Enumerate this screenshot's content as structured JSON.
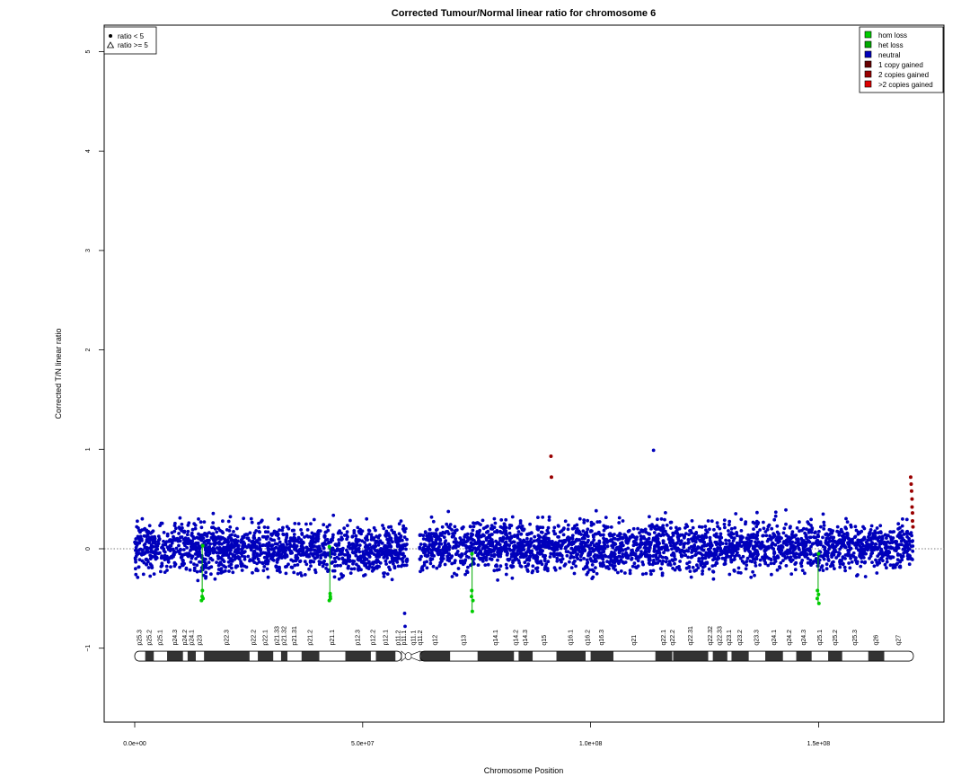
{
  "chart_data": {
    "type": "scatter",
    "title": "Corrected Tumour/Normal linear ratio for chromosome  6",
    "xlabel": "Chromosome Position",
    "ylabel": "Corrected T/N linear ratio",
    "xlim": [
      0,
      170800000
    ],
    "ylim": [
      -1.8,
      5.3
    ],
    "x_ticks": [
      0,
      50000000,
      100000000,
      150000000
    ],
    "x_tick_labels": [
      "0.0e+00",
      "5.0e+07",
      "1.0e+08",
      "1.5e+08"
    ],
    "y_ticks": [
      -1,
      0,
      1,
      2,
      3,
      4,
      5
    ],
    "y_tick_labels": [
      "−1",
      "0",
      "1",
      "2",
      "3",
      "4",
      "5"
    ],
    "reference_line_y": 0,
    "series_colors": {
      "hom_loss": "#00cc00",
      "het_loss": "#00aa00",
      "neutral": "#0000bb",
      "gain1": "#660000",
      "gain2": "#990000",
      "gain_more": "#dd0000"
    },
    "neutral_segments": [
      {
        "start": 0,
        "end": 59800000,
        "mean": 0.0,
        "spread": 0.22
      },
      {
        "start": 62500000,
        "end": 170700000,
        "mean": 0.02,
        "spread": 0.22
      }
    ],
    "loss_spikes": [
      {
        "x": 14800000,
        "values": [
          0.03,
          -0.42,
          -0.48,
          -0.5,
          -0.52
        ]
      },
      {
        "x": 42800000,
        "values": [
          0.02,
          -0.45,
          -0.48,
          -0.5,
          -0.52
        ]
      },
      {
        "x": 74000000,
        "values": [
          -0.05,
          -0.42,
          -0.48,
          -0.52,
          -0.63
        ]
      },
      {
        "x": 149900000,
        "values": [
          -0.05,
          -0.42,
          -0.46,
          -0.5,
          -0.55
        ]
      }
    ],
    "gain_points": [
      {
        "x": 91300000,
        "y": 0.93
      },
      {
        "x": 91400000,
        "y": 0.72
      },
      {
        "x": 170200000,
        "y": 0.72
      },
      {
        "x": 170300000,
        "y": 0.65
      },
      {
        "x": 170400000,
        "y": 0.58
      },
      {
        "x": 170500000,
        "y": 0.5
      },
      {
        "x": 170500000,
        "y": 0.42
      },
      {
        "x": 170600000,
        "y": 0.36
      },
      {
        "x": 170600000,
        "y": 0.28
      },
      {
        "x": 170700000,
        "y": 0.22
      }
    ],
    "outlier_points": [
      {
        "x": 113800000,
        "y": 0.99
      },
      {
        "x": 59300000,
        "y": -0.78
      },
      {
        "x": 59200000,
        "y": -0.65
      }
    ],
    "ideogram": {
      "y": -1.08,
      "centromere": 60000000,
      "bands": [
        {
          "name": "p25.3",
          "start": 0,
          "end": 2300000,
          "stain": "gneg"
        },
        {
          "name": "p25.2",
          "start": 2300000,
          "end": 4200000,
          "stain": "gpos"
        },
        {
          "name": "p25.1",
          "start": 4200000,
          "end": 7100000,
          "stain": "gneg"
        },
        {
          "name": "p24.3",
          "start": 7100000,
          "end": 10600000,
          "stain": "gpos"
        },
        {
          "name": "p24.2",
          "start": 10600000,
          "end": 11600000,
          "stain": "gneg"
        },
        {
          "name": "p24.1",
          "start": 11600000,
          "end": 13400000,
          "stain": "gpos"
        },
        {
          "name": "p23",
          "start": 13400000,
          "end": 15200000,
          "stain": "gneg"
        },
        {
          "name": "p22.3",
          "start": 15200000,
          "end": 25200000,
          "stain": "gpos"
        },
        {
          "name": "p22.2",
          "start": 25200000,
          "end": 27000000,
          "stain": "gneg"
        },
        {
          "name": "p22.1",
          "start": 27000000,
          "end": 30400000,
          "stain": "gpos"
        },
        {
          "name": "p21.33",
          "start": 30400000,
          "end": 32100000,
          "stain": "gneg"
        },
        {
          "name": "p21.32",
          "start": 32100000,
          "end": 33500000,
          "stain": "gpos"
        },
        {
          "name": "p21.31",
          "start": 33500000,
          "end": 36600000,
          "stain": "gneg"
        },
        {
          "name": "p21.2",
          "start": 36600000,
          "end": 40500000,
          "stain": "gpos"
        },
        {
          "name": "p21.1",
          "start": 40500000,
          "end": 46200000,
          "stain": "gneg"
        },
        {
          "name": "p12.3",
          "start": 46200000,
          "end": 51800000,
          "stain": "gpos"
        },
        {
          "name": "p12.2",
          "start": 51800000,
          "end": 52900000,
          "stain": "gneg"
        },
        {
          "name": "p12.1",
          "start": 52900000,
          "end": 57200000,
          "stain": "gpos"
        },
        {
          "name": "p11.2",
          "start": 57200000,
          "end": 58500000,
          "stain": "gneg"
        },
        {
          "name": "p11.1",
          "start": 58500000,
          "end": 59800000,
          "stain": "acen"
        },
        {
          "name": "q11.1",
          "start": 59800000,
          "end": 62600000,
          "stain": "acen"
        },
        {
          "name": "q11.2",
          "start": 62600000,
          "end": 62700000,
          "stain": "gvar"
        },
        {
          "name": "q12",
          "start": 62700000,
          "end": 69200000,
          "stain": "gpos"
        },
        {
          "name": "q13",
          "start": 69200000,
          "end": 75200000,
          "stain": "gneg"
        },
        {
          "name": "q14.1",
          "start": 75200000,
          "end": 83200000,
          "stain": "gpos"
        },
        {
          "name": "q14.2",
          "start": 83200000,
          "end": 84200000,
          "stain": "gneg"
        },
        {
          "name": "q14.3",
          "start": 84200000,
          "end": 87300000,
          "stain": "gpos"
        },
        {
          "name": "q15",
          "start": 87300000,
          "end": 92500000,
          "stain": "gneg"
        },
        {
          "name": "q16.1",
          "start": 92500000,
          "end": 98900000,
          "stain": "gpos"
        },
        {
          "name": "q16.2",
          "start": 98900000,
          "end": 100000000,
          "stain": "gneg"
        },
        {
          "name": "q16.3",
          "start": 100000000,
          "end": 105000000,
          "stain": "gpos"
        },
        {
          "name": "q21",
          "start": 105000000,
          "end": 114200000,
          "stain": "gneg"
        },
        {
          "name": "q22.1",
          "start": 114200000,
          "end": 117900000,
          "stain": "gpos"
        },
        {
          "name": "q22.2",
          "start": 117900000,
          "end": 118100000,
          "stain": "gneg"
        },
        {
          "name": "q22.31",
          "start": 118100000,
          "end": 125800000,
          "stain": "gpos"
        },
        {
          "name": "q22.32",
          "start": 125800000,
          "end": 126800000,
          "stain": "gneg"
        },
        {
          "name": "q22.33",
          "start": 126800000,
          "end": 130000000,
          "stain": "gpos"
        },
        {
          "name": "q23.1",
          "start": 130000000,
          "end": 130900000,
          "stain": "gneg"
        },
        {
          "name": "q23.2",
          "start": 130900000,
          "end": 134700000,
          "stain": "gpos"
        },
        {
          "name": "q23.3",
          "start": 134700000,
          "end": 138300000,
          "stain": "gneg"
        },
        {
          "name": "q24.1",
          "start": 138300000,
          "end": 142200000,
          "stain": "gpos"
        },
        {
          "name": "q24.2",
          "start": 142200000,
          "end": 145100000,
          "stain": "gneg"
        },
        {
          "name": "q24.3",
          "start": 145100000,
          "end": 148500000,
          "stain": "gpos"
        },
        {
          "name": "q25.1",
          "start": 148500000,
          "end": 152100000,
          "stain": "gneg"
        },
        {
          "name": "q25.2",
          "start": 152100000,
          "end": 155200000,
          "stain": "gpos"
        },
        {
          "name": "q25.3",
          "start": 155200000,
          "end": 160900000,
          "stain": "gneg"
        },
        {
          "name": "q26",
          "start": 160900000,
          "end": 164400000,
          "stain": "gpos"
        },
        {
          "name": "q27",
          "start": 164400000,
          "end": 170800000,
          "stain": "gneg"
        }
      ]
    },
    "legend_left": {
      "position": "top-left",
      "items": [
        {
          "label": "ratio < 5",
          "symbol": "filled-circle"
        },
        {
          "label": "ratio >= 5",
          "symbol": "open-triangle"
        }
      ]
    },
    "legend_right": {
      "position": "top-right",
      "items": [
        {
          "label": "hom loss",
          "color": "#00cc00"
        },
        {
          "label": "het loss",
          "color": "#00aa00"
        },
        {
          "label": "neutral",
          "color": "#0000bb"
        },
        {
          "label": "1 copy gained",
          "color": "#660000"
        },
        {
          "label": "2 copies gained",
          "color": "#990000"
        },
        {
          "label": ">2 copies gained",
          "color": "#dd0000"
        }
      ]
    }
  }
}
